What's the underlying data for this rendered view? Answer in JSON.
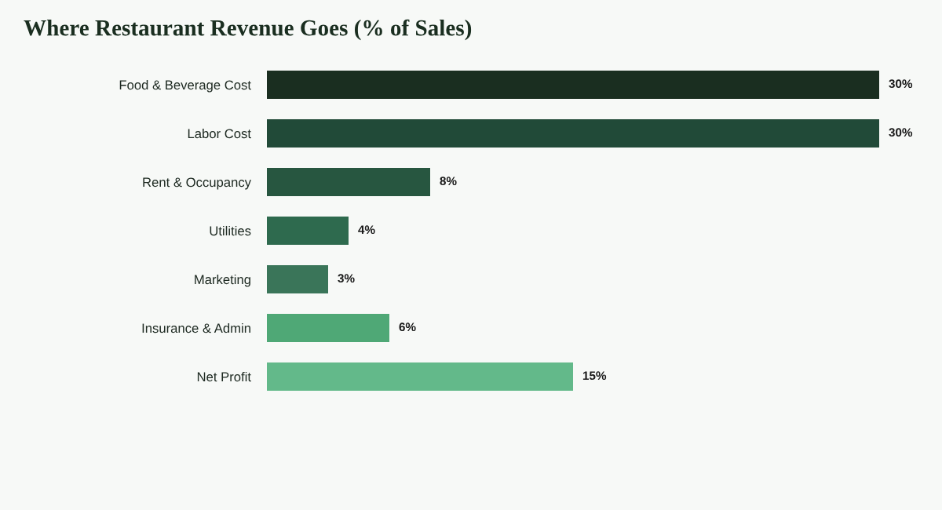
{
  "chart_data": {
    "type": "bar",
    "orientation": "horizontal",
    "title": "Where Restaurant Revenue Goes (% of Sales)",
    "categories": [
      "Food & Beverage Cost",
      "Labor Cost",
      "Rent & Occupancy",
      "Utilities",
      "Marketing",
      "Insurance & Admin",
      "Net Profit"
    ],
    "values": [
      30,
      30,
      8,
      4,
      3,
      6,
      15
    ],
    "colors": [
      "#1a2e20",
      "#214a38",
      "#275640",
      "#2e6a4e",
      "#3a7559",
      "#4fa876",
      "#63b98a"
    ],
    "value_labels": [
      "30%",
      "30%",
      "8%",
      "4%",
      "3%",
      "6%",
      "15%"
    ],
    "xlim": [
      0,
      30
    ],
    "tick_labels": "y"
  }
}
